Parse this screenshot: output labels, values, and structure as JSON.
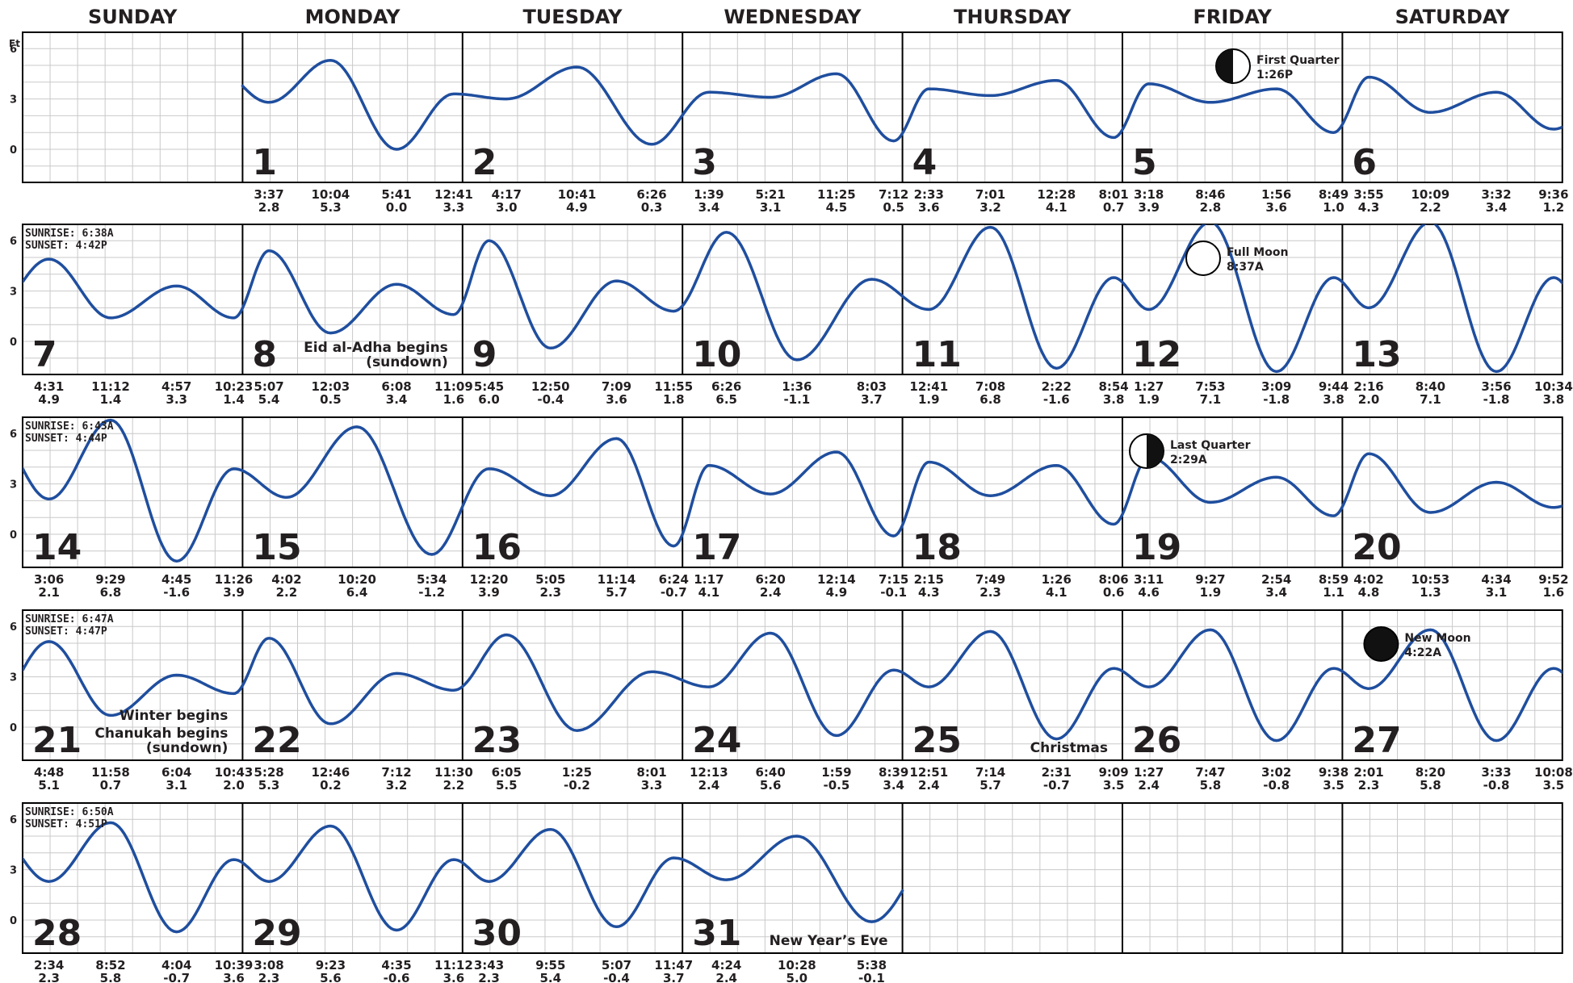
{
  "calendar": {
    "weekdays": [
      "SUNDAY",
      "MONDAY",
      "TUESDAY",
      "WEDNESDAY",
      "THURSDAY",
      "FRIDAY",
      "SATURDAY"
    ],
    "unit_label": "Ft",
    "y_ticks": [
      "6",
      "3",
      "0"
    ],
    "colors": {
      "tide_line": "#1f4e9e",
      "grid": "#c9c9c9",
      "border": "#000000",
      "text": "#231f20"
    }
  },
  "chart_data": {
    "type": "line",
    "ylabel": "Ft",
    "ylim": [
      -2,
      7
    ],
    "yticks": [
      0,
      3,
      6
    ],
    "grid": true,
    "weeks": [
      {
        "sunrise_label": "",
        "sunset_label": "",
        "days": [
          {
            "day": "",
            "extremes": []
          },
          {
            "day": "1",
            "extremes": [
              {
                "time": "3:37",
                "height": 2.8
              },
              {
                "time": "10:04",
                "height": 5.3
              },
              {
                "time": "5:41",
                "height": 0.0
              },
              {
                "time": "12:41",
                "height": 3.3
              }
            ]
          },
          {
            "day": "2",
            "extremes": [
              {
                "time": "4:17",
                "height": 3.0
              },
              {
                "time": "10:41",
                "height": 4.9
              },
              {
                "time": "6:26",
                "height": 0.3
              }
            ]
          },
          {
            "day": "3",
            "extremes": [
              {
                "time": "1:39",
                "height": 3.4
              },
              {
                "time": "5:21",
                "height": 3.1
              },
              {
                "time": "11:25",
                "height": 4.5
              },
              {
                "time": "7:12",
                "height": 0.5
              }
            ]
          },
          {
            "day": "4",
            "extremes": [
              {
                "time": "2:33",
                "height": 3.6
              },
              {
                "time": "7:01",
                "height": 3.2
              },
              {
                "time": "12:28",
                "height": 4.1
              },
              {
                "time": "8:01",
                "height": 0.7
              }
            ]
          },
          {
            "day": "5",
            "extremes": [
              {
                "time": "3:18",
                "height": 3.9
              },
              {
                "time": "8:46",
                "height": 2.8
              },
              {
                "time": "1:56",
                "height": 3.6
              },
              {
                "time": "8:49",
                "height": 1.0
              }
            ],
            "moon": {
              "phase": "first-quarter",
              "label": "First Quarter",
              "time": "1:26P"
            }
          },
          {
            "day": "6",
            "extremes": [
              {
                "time": "3:55",
                "height": 4.3
              },
              {
                "time": "10:09",
                "height": 2.2
              },
              {
                "time": "3:32",
                "height": 3.4
              },
              {
                "time": "9:36",
                "height": 1.2
              }
            ]
          }
        ]
      },
      {
        "sunrise_label": "SUNRISE:  6:38A",
        "sunset_label": "SUNSET:  4:42P",
        "days": [
          {
            "day": "7",
            "extremes": [
              {
                "time": "4:31",
                "height": 4.9
              },
              {
                "time": "11:12",
                "height": 1.4
              },
              {
                "time": "4:57",
                "height": 3.3
              },
              {
                "time": "10:23",
                "height": 1.4
              }
            ]
          },
          {
            "day": "8",
            "extremes": [
              {
                "time": "5:07",
                "height": 5.4
              },
              {
                "time": "12:03",
                "height": 0.5
              },
              {
                "time": "6:08",
                "height": 3.4
              },
              {
                "time": "11:09",
                "height": 1.6
              }
            ],
            "event": [
              "Eid al-Adha begins",
              "(sundown)"
            ]
          },
          {
            "day": "9",
            "extremes": [
              {
                "time": "5:45",
                "height": 6.0
              },
              {
                "time": "12:50",
                "height": -0.4
              },
              {
                "time": "7:09",
                "height": 3.6
              },
              {
                "time": "11:55",
                "height": 1.8
              }
            ]
          },
          {
            "day": "10",
            "extremes": [
              {
                "time": "6:26",
                "height": 6.5
              },
              {
                "time": "1:36",
                "height": -1.1
              },
              {
                "time": "8:03",
                "height": 3.7
              }
            ]
          },
          {
            "day": "11",
            "extremes": [
              {
                "time": "12:41",
                "height": 1.9
              },
              {
                "time": "7:08",
                "height": 6.8
              },
              {
                "time": "2:22",
                "height": -1.6
              },
              {
                "time": "8:54",
                "height": 3.8
              }
            ]
          },
          {
            "day": "12",
            "extremes": [
              {
                "time": "1:27",
                "height": 1.9
              },
              {
                "time": "7:53",
                "height": 7.1
              },
              {
                "time": "3:09",
                "height": -1.8
              },
              {
                "time": "9:44",
                "height": 3.8
              }
            ],
            "moon": {
              "phase": "full",
              "label": "Full Moon",
              "time": "8:37A"
            }
          },
          {
            "day": "13",
            "extremes": [
              {
                "time": "2:16",
                "height": 2.0
              },
              {
                "time": "8:40",
                "height": 7.1
              },
              {
                "time": "3:56",
                "height": -1.8
              },
              {
                "time": "10:34",
                "height": 3.8
              }
            ]
          }
        ]
      },
      {
        "sunrise_label": "SUNRISE:  6:43A",
        "sunset_label": "SUNSET:  4:44P",
        "days": [
          {
            "day": "14",
            "extremes": [
              {
                "time": "3:06",
                "height": 2.1
              },
              {
                "time": "9:29",
                "height": 6.8
              },
              {
                "time": "4:45",
                "height": -1.6
              },
              {
                "time": "11:26",
                "height": 3.9
              }
            ]
          },
          {
            "day": "15",
            "extremes": [
              {
                "time": "4:02",
                "height": 2.2
              },
              {
                "time": "10:20",
                "height": 6.4
              },
              {
                "time": "5:34",
                "height": -1.2
              }
            ]
          },
          {
            "day": "16",
            "extremes": [
              {
                "time": "12:20",
                "height": 3.9
              },
              {
                "time": "5:05",
                "height": 2.3
              },
              {
                "time": "11:14",
                "height": 5.7
              },
              {
                "time": "6:24",
                "height": -0.7
              }
            ]
          },
          {
            "day": "17",
            "extremes": [
              {
                "time": "1:17",
                "height": 4.1
              },
              {
                "time": "6:20",
                "height": 2.4
              },
              {
                "time": "12:14",
                "height": 4.9
              },
              {
                "time": "7:15",
                "height": -0.1
              }
            ]
          },
          {
            "day": "18",
            "extremes": [
              {
                "time": "2:15",
                "height": 4.3
              },
              {
                "time": "7:49",
                "height": 2.3
              },
              {
                "time": "1:26",
                "height": 4.1
              },
              {
                "time": "8:06",
                "height": 0.6
              }
            ]
          },
          {
            "day": "19",
            "extremes": [
              {
                "time": "3:11",
                "height": 4.6
              },
              {
                "time": "9:27",
                "height": 1.9
              },
              {
                "time": "2:54",
                "height": 3.4
              },
              {
                "time": "8:59",
                "height": 1.1
              }
            ],
            "moon": {
              "phase": "last-quarter",
              "label": "Last Quarter",
              "time": "2:29A"
            }
          },
          {
            "day": "20",
            "extremes": [
              {
                "time": "4:02",
                "height": 4.8
              },
              {
                "time": "10:53",
                "height": 1.3
              },
              {
                "time": "4:34",
                "height": 3.1
              },
              {
                "time": "9:52",
                "height": 1.6
              }
            ]
          }
        ]
      },
      {
        "sunrise_label": "SUNRISE:  6:47A",
        "sunset_label": "SUNSET:  4:47P",
        "days": [
          {
            "day": "21",
            "extremes": [
              {
                "time": "4:48",
                "height": 5.1
              },
              {
                "time": "11:58",
                "height": 0.7
              },
              {
                "time": "6:04",
                "height": 3.1
              },
              {
                "time": "10:43",
                "height": 2.0
              }
            ],
            "event": [
              "Chanukah begins",
              "(sundown)"
            ],
            "event_top": "Winter begins"
          },
          {
            "day": "22",
            "extremes": [
              {
                "time": "5:28",
                "height": 5.3
              },
              {
                "time": "12:46",
                "height": 0.2
              },
              {
                "time": "7:12",
                "height": 3.2
              },
              {
                "time": "11:30",
                "height": 2.2
              }
            ]
          },
          {
            "day": "23",
            "extremes": [
              {
                "time": "6:05",
                "height": 5.5
              },
              {
                "time": "1:25",
                "height": -0.2
              },
              {
                "time": "8:01",
                "height": 3.3
              }
            ]
          },
          {
            "day": "24",
            "extremes": [
              {
                "time": "12:13",
                "height": 2.4
              },
              {
                "time": "6:40",
                "height": 5.6
              },
              {
                "time": "1:59",
                "height": -0.5
              },
              {
                "time": "8:39",
                "height": 3.4
              }
            ]
          },
          {
            "day": "25",
            "extremes": [
              {
                "time": "12:51",
                "height": 2.4
              },
              {
                "time": "7:14",
                "height": 5.7
              },
              {
                "time": "2:31",
                "height": -0.7
              },
              {
                "time": "9:09",
                "height": 3.5
              }
            ],
            "event": [
              "Christmas"
            ]
          },
          {
            "day": "26",
            "extremes": [
              {
                "time": "1:27",
                "height": 2.4
              },
              {
                "time": "7:47",
                "height": 5.8
              },
              {
                "time": "3:02",
                "height": -0.8
              },
              {
                "time": "9:38",
                "height": 3.5
              }
            ]
          },
          {
            "day": "27",
            "extremes": [
              {
                "time": "2:01",
                "height": 2.3
              },
              {
                "time": "8:20",
                "height": 5.8
              },
              {
                "time": "3:33",
                "height": -0.8
              },
              {
                "time": "10:08",
                "height": 3.5
              }
            ],
            "moon": {
              "phase": "new",
              "label": "New Moon",
              "time": "4:22A"
            }
          }
        ]
      },
      {
        "sunrise_label": "SUNRISE:  6:50A",
        "sunset_label": "SUNSET:  4:51P",
        "days": [
          {
            "day": "28",
            "extremes": [
              {
                "time": "2:34",
                "height": 2.3
              },
              {
                "time": "8:52",
                "height": 5.8
              },
              {
                "time": "4:04",
                "height": -0.7
              },
              {
                "time": "10:39",
                "height": 3.6
              }
            ]
          },
          {
            "day": "29",
            "extremes": [
              {
                "time": "3:08",
                "height": 2.3
              },
              {
                "time": "9:23",
                "height": 5.6
              },
              {
                "time": "4:35",
                "height": -0.6
              },
              {
                "time": "11:12",
                "height": 3.6
              }
            ]
          },
          {
            "day": "30",
            "extremes": [
              {
                "time": "3:43",
                "height": 2.3
              },
              {
                "time": "9:55",
                "height": 5.4
              },
              {
                "time": "5:07",
                "height": -0.4
              },
              {
                "time": "11:47",
                "height": 3.7
              }
            ]
          },
          {
            "day": "31",
            "extremes": [
              {
                "time": "4:24",
                "height": 2.4
              },
              {
                "time": "10:28",
                "height": 5.0
              },
              {
                "time": "5:38",
                "height": -0.1
              }
            ],
            "event": [
              "New Year’s Eve"
            ]
          },
          {
            "day": "",
            "extremes": []
          },
          {
            "day": "",
            "extremes": []
          },
          {
            "day": "",
            "extremes": []
          }
        ]
      }
    ]
  }
}
